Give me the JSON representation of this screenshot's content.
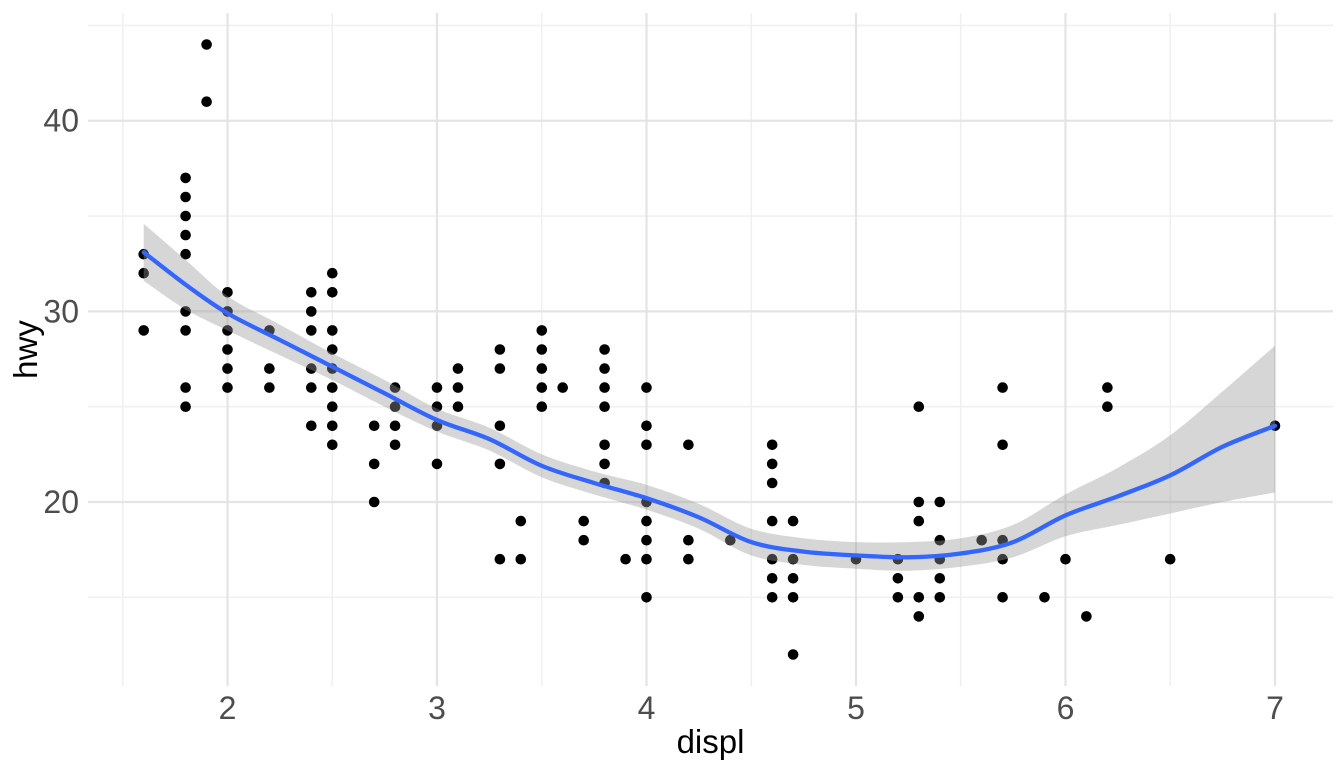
{
  "chart_data": {
    "type": "scatter",
    "title": "",
    "xlabel": "displ",
    "ylabel": "hwy",
    "legend": "none",
    "grid": "on",
    "background": "#ffffff",
    "point_color": "#000000",
    "gridline_major_color": "#e4e4e4",
    "gridline_minor_color": "#f0f0f0",
    "axes": {
      "x": {
        "label": "displ",
        "range": [
          1.334,
          7.277
        ],
        "ticks_major": [
          2,
          3,
          4,
          5,
          6,
          7
        ],
        "ticks_minor": [
          1.5,
          2.5,
          3.5,
          4.5,
          5.5,
          6.5
        ]
      },
      "y": {
        "label": "hwy",
        "range": [
          10.35,
          45.65
        ],
        "ticks_major": [
          20,
          30,
          40
        ],
        "ticks_minor": [
          15,
          25,
          35,
          45
        ]
      }
    },
    "points": [
      [
        1.6,
        33
      ],
      [
        1.6,
        32
      ],
      [
        1.6,
        29
      ],
      [
        1.8,
        37
      ],
      [
        1.8,
        36
      ],
      [
        1.8,
        35
      ],
      [
        1.8,
        34
      ],
      [
        1.8,
        33
      ],
      [
        1.8,
        30
      ],
      [
        1.8,
        29
      ],
      [
        1.8,
        26
      ],
      [
        1.8,
        25
      ],
      [
        1.9,
        44
      ],
      [
        1.9,
        41
      ],
      [
        2.0,
        31
      ],
      [
        2.0,
        30
      ],
      [
        2.0,
        29
      ],
      [
        2.0,
        28
      ],
      [
        2.0,
        27
      ],
      [
        2.0,
        26
      ],
      [
        2.2,
        29
      ],
      [
        2.2,
        27
      ],
      [
        2.2,
        26
      ],
      [
        2.4,
        31
      ],
      [
        2.4,
        30
      ],
      [
        2.4,
        29
      ],
      [
        2.4,
        27
      ],
      [
        2.4,
        26
      ],
      [
        2.4,
        24
      ],
      [
        2.5,
        32
      ],
      [
        2.5,
        31
      ],
      [
        2.5,
        29
      ],
      [
        2.5,
        28
      ],
      [
        2.5,
        27
      ],
      [
        2.5,
        26
      ],
      [
        2.5,
        25
      ],
      [
        2.5,
        24
      ],
      [
        2.5,
        23
      ],
      [
        2.7,
        24
      ],
      [
        2.7,
        22
      ],
      [
        2.7,
        20
      ],
      [
        2.8,
        26
      ],
      [
        2.8,
        25
      ],
      [
        2.8,
        24
      ],
      [
        2.8,
        23
      ],
      [
        3.0,
        26
      ],
      [
        3.0,
        25
      ],
      [
        3.0,
        24
      ],
      [
        3.0,
        22
      ],
      [
        3.1,
        27
      ],
      [
        3.1,
        26
      ],
      [
        3.1,
        25
      ],
      [
        3.3,
        28
      ],
      [
        3.3,
        27
      ],
      [
        3.3,
        24
      ],
      [
        3.3,
        22
      ],
      [
        3.3,
        17
      ],
      [
        3.4,
        19
      ],
      [
        3.4,
        17
      ],
      [
        3.5,
        29
      ],
      [
        3.5,
        28
      ],
      [
        3.5,
        27
      ],
      [
        3.5,
        26
      ],
      [
        3.5,
        25
      ],
      [
        3.6,
        26
      ],
      [
        3.7,
        19
      ],
      [
        3.7,
        18
      ],
      [
        3.8,
        28
      ],
      [
        3.8,
        27
      ],
      [
        3.8,
        26
      ],
      [
        3.8,
        25
      ],
      [
        3.8,
        23
      ],
      [
        3.8,
        22
      ],
      [
        3.8,
        21
      ],
      [
        3.9,
        17
      ],
      [
        4.0,
        26
      ],
      [
        4.0,
        24
      ],
      [
        4.0,
        23
      ],
      [
        4.0,
        20
      ],
      [
        4.0,
        19
      ],
      [
        4.0,
        18
      ],
      [
        4.0,
        17
      ],
      [
        4.0,
        15
      ],
      [
        4.2,
        23
      ],
      [
        4.2,
        18
      ],
      [
        4.2,
        17
      ],
      [
        4.4,
        18
      ],
      [
        4.6,
        23
      ],
      [
        4.6,
        22
      ],
      [
        4.6,
        21
      ],
      [
        4.6,
        19
      ],
      [
        4.6,
        17
      ],
      [
        4.6,
        16
      ],
      [
        4.6,
        15
      ],
      [
        4.7,
        19
      ],
      [
        4.7,
        17
      ],
      [
        4.7,
        16
      ],
      [
        4.7,
        15
      ],
      [
        4.7,
        12
      ],
      [
        5.0,
        17
      ],
      [
        5.2,
        17
      ],
      [
        5.2,
        16
      ],
      [
        5.2,
        15
      ],
      [
        5.3,
        25
      ],
      [
        5.3,
        20
      ],
      [
        5.3,
        19
      ],
      [
        5.3,
        15
      ],
      [
        5.3,
        14
      ],
      [
        5.4,
        20
      ],
      [
        5.4,
        18
      ],
      [
        5.4,
        17
      ],
      [
        5.4,
        16
      ],
      [
        5.4,
        15
      ],
      [
        5.6,
        18
      ],
      [
        5.7,
        26
      ],
      [
        5.7,
        23
      ],
      [
        5.7,
        18
      ],
      [
        5.7,
        17
      ],
      [
        5.7,
        15
      ],
      [
        5.9,
        15
      ],
      [
        6.0,
        17
      ],
      [
        6.1,
        14
      ],
      [
        6.2,
        26
      ],
      [
        6.2,
        25
      ],
      [
        6.5,
        17
      ],
      [
        7.0,
        24
      ]
    ],
    "smooth": {
      "method": "loess",
      "line_color": "#3366FF",
      "line_width": 4.3,
      "ribbon_color": "#999999",
      "ribbon_opacity": 0.4,
      "x": [
        1.6,
        1.8,
        2.0,
        2.25,
        2.5,
        2.75,
        3.0,
        3.25,
        3.5,
        3.75,
        4.0,
        4.25,
        4.5,
        4.75,
        5.0,
        5.25,
        5.5,
        5.75,
        6.0,
        6.25,
        6.5,
        6.75,
        7.0
      ],
      "line": [
        33.1,
        31.4,
        29.9,
        28.5,
        27.1,
        25.7,
        24.3,
        23.3,
        21.9,
        21.0,
        20.2,
        19.2,
        17.9,
        17.4,
        17.2,
        17.1,
        17.3,
        17.9,
        19.3,
        20.3,
        21.4,
        22.9,
        24.0
      ],
      "upper": [
        34.6,
        32.7,
        30.8,
        29.3,
        27.8,
        26.4,
        24.9,
        23.9,
        22.5,
        21.6,
        20.9,
        19.9,
        18.6,
        18.1,
        17.9,
        17.9,
        18.1,
        18.8,
        20.4,
        21.8,
        23.5,
        25.8,
        28.2
      ],
      "lower": [
        31.6,
        30.1,
        29.0,
        27.7,
        26.4,
        25.0,
        23.7,
        22.7,
        21.3,
        20.4,
        19.6,
        18.6,
        17.2,
        16.7,
        16.5,
        16.4,
        16.6,
        17.1,
        18.2,
        18.8,
        19.4,
        20.0,
        20.5
      ]
    }
  }
}
